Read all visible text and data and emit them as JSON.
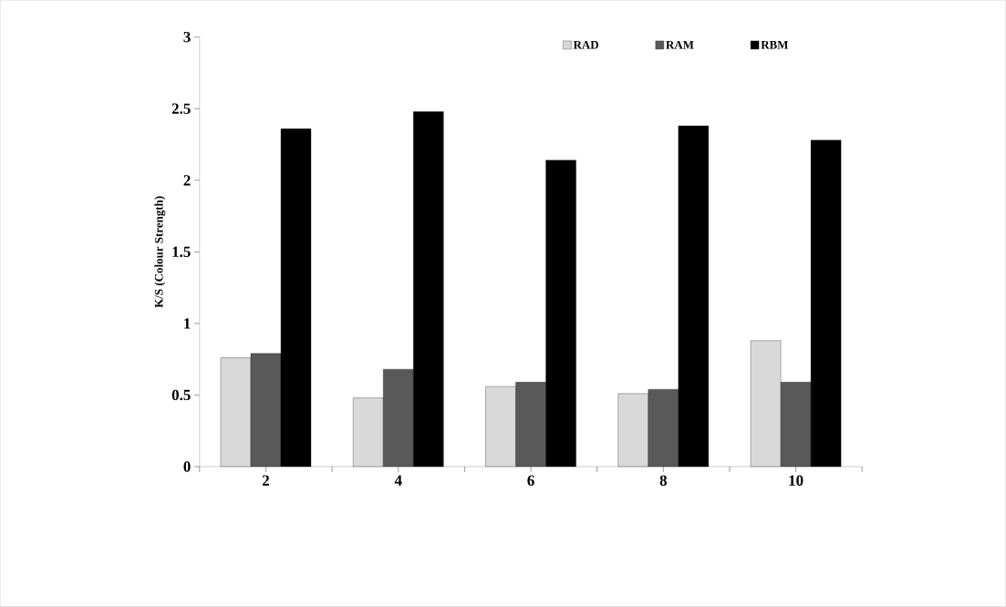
{
  "chart_data": {
    "type": "bar",
    "ylabel": "K/S (Colour Strength)",
    "categories": [
      "2",
      "4",
      "6",
      "8",
      "10"
    ],
    "series": [
      {
        "name": "RAD",
        "color": "#d9d9d9",
        "values": [
          0.76,
          0.48,
          0.56,
          0.51,
          0.88
        ]
      },
      {
        "name": "RAM",
        "color": "#595959",
        "values": [
          0.79,
          0.68,
          0.59,
          0.54,
          0.59
        ]
      },
      {
        "name": "RBM",
        "color": "#000000",
        "values": [
          2.36,
          2.48,
          2.14,
          2.38,
          2.28
        ]
      }
    ],
    "ylim": [
      0,
      3
    ],
    "yticks": [
      0,
      0.5,
      1,
      1.5,
      2,
      2.5,
      3
    ],
    "grid": false,
    "legend": "top"
  }
}
